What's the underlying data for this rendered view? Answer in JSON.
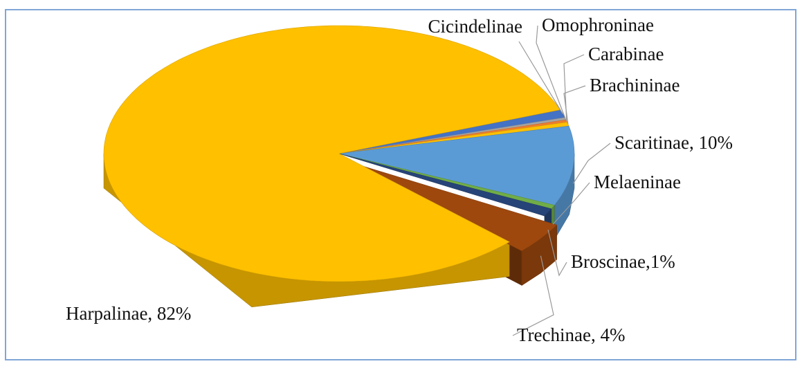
{
  "chart_data": {
    "type": "pie3d",
    "categories": [
      "Cicindelinae",
      "Omophroninae",
      "Carabinae",
      "Brachininae",
      "Scaritinae, 10%",
      "Melaeninae",
      "Broscinae,1%",
      "Trechinae, 4%",
      "Harpalinae, 82%"
    ],
    "values": [
      1,
      0.3,
      0.3,
      0.5,
      10,
      0.5,
      1,
      4,
      82
    ],
    "colors": [
      "#4472c4",
      "#a5a5a5",
      "#ed7d31",
      "#ffc000",
      "#5b9bd5",
      "#70ad47",
      "#264478",
      "#9e480e",
      "#ffc000"
    ],
    "exploded": [
      false,
      false,
      false,
      false,
      false,
      false,
      false,
      true,
      false
    ]
  }
}
